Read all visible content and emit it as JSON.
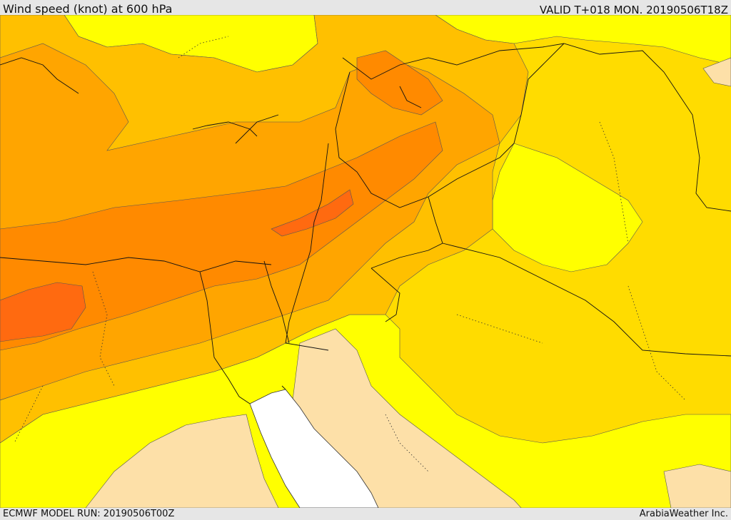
{
  "header": {
    "title": "Wind speed (knot) at 600 hPa",
    "valid": "VALID T+018 MON. 20190506T18Z"
  },
  "footer": {
    "model_run": "ECMWF MODEL RUN: 20190506T00Z",
    "credit": "ArabiaWeather Inc."
  },
  "palette": {
    "band_lightest": "#fde0a8",
    "band_yellow": "#ffff00",
    "band_gold": "#ffdc00",
    "band_amber": "#ffc000",
    "band_orange_light": "#ffa500",
    "band_orange": "#ff8a00",
    "band_orange_dark": "#ff6a10",
    "sea_gap": "#ffffff",
    "border_line": "#111111"
  }
}
